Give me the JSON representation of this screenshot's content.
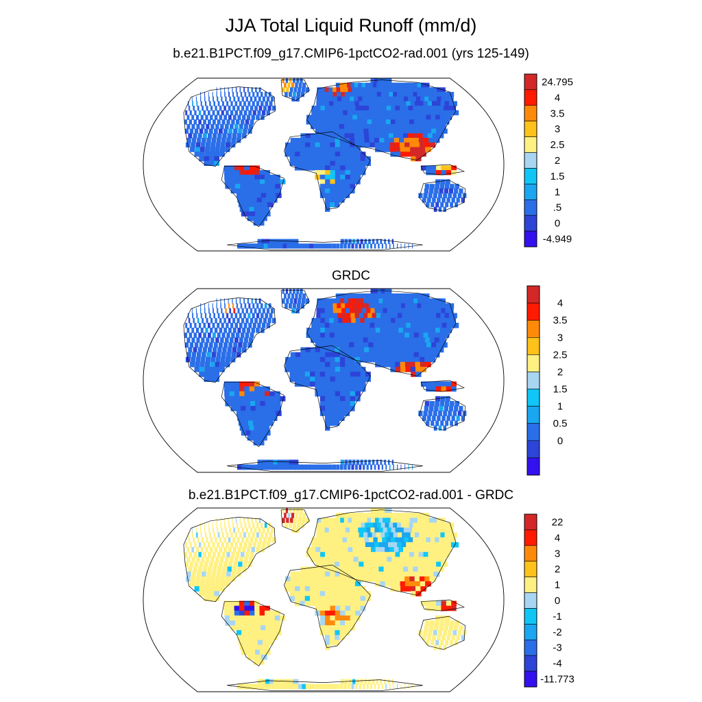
{
  "figure": {
    "title": "JJA Total Liquid Runoff (mm/d)"
  },
  "panels": [
    {
      "title": "b.e21.B1PCT.f09_g17.CMIP6-1pctCO2-rad.001 (yrs 125-149)",
      "colorbar": {
        "colors": [
          "#3311ee",
          "#2d44d8",
          "#2a6ee8",
          "#1aa6f0",
          "#10c6f6",
          "#a8d6f2",
          "#fff082",
          "#ffc21a",
          "#ff8a0a",
          "#ff1a00",
          "#d42828"
        ],
        "labels": [
          "24.795",
          "4",
          "3.5",
          "3",
          "2.5",
          "2",
          "1.5",
          "1",
          ".5",
          "0",
          "-4.949"
        ]
      }
    },
    {
      "title": "GRDC",
      "colorbar": {
        "colors": [
          "#3311ee",
          "#2d44d8",
          "#2a6ee8",
          "#1aa6f0",
          "#10c6f6",
          "#a8d6f2",
          "#fff082",
          "#ffc21a",
          "#ff8a0a",
          "#ff1a00",
          "#d42828"
        ],
        "labels": [
          "4",
          "3.5",
          "3",
          "2.5",
          "2",
          "1.5",
          "1",
          "0.5",
          "0"
        ]
      }
    },
    {
      "title": "b.e21.B1PCT.f09_g17.CMIP6-1pctCO2-rad.001 - GRDC",
      "colorbar": {
        "colors": [
          "#3311ee",
          "#2d44d8",
          "#2a6ee8",
          "#1aa6f0",
          "#10c6f6",
          "#a8d6f2",
          "#fff082",
          "#ffc21a",
          "#ff8a0a",
          "#ff1a00",
          "#d42828"
        ],
        "labels": [
          "22",
          "4",
          "3",
          "2",
          "1",
          "0",
          "-1",
          "-2",
          "-3",
          "-4",
          "-11.773"
        ]
      }
    }
  ]
}
